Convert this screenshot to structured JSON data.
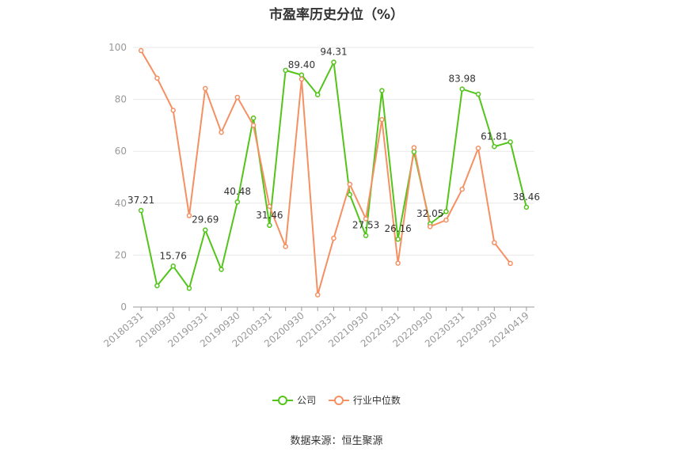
{
  "title": "市盈率历史分位（%）",
  "source": "数据来源：恒生聚源",
  "colors": {
    "company": "#52c41a",
    "industry": "#f59063",
    "grid": "#e8e8e8",
    "axis": "#999999"
  },
  "chart_data": {
    "type": "line",
    "title": "市盈率历史分位（%）",
    "ylim": [
      0,
      100
    ],
    "yticks": [
      0,
      20,
      40,
      60,
      80,
      100
    ],
    "grid": true,
    "legend_position": "bottom",
    "x": [
      "20180331",
      "20180630",
      "20180930",
      "20181231",
      "20190331",
      "20190630",
      "20190930",
      "20191231",
      "20200331",
      "20200630",
      "20200930",
      "20201231",
      "20210331",
      "20210630",
      "20210930",
      "20211231",
      "20220331",
      "20220630",
      "20220930",
      "20221231",
      "20230331",
      "20230630",
      "20230930",
      "20231231",
      "20240419"
    ],
    "xtick_labels": [
      "20180331",
      "20180930",
      "20190331",
      "20190930",
      "20200331",
      "20200930",
      "20210331",
      "20210930",
      "20220331",
      "20220930",
      "20230331",
      "20230930",
      "20240419"
    ],
    "series": [
      {
        "name": "公司",
        "values": [
          37.21,
          8.2,
          15.76,
          7.2,
          29.69,
          14.5,
          40.48,
          72.8,
          31.46,
          91.2,
          89.4,
          81.8,
          94.31,
          43.3,
          27.53,
          83.4,
          26.16,
          59.8,
          32.05,
          36.8,
          83.98,
          82.0,
          61.81,
          63.6,
          38.46
        ],
        "labels": [
          "37.21",
          "",
          "15.76",
          "",
          "29.69",
          "",
          "40.48",
          "",
          "31.46",
          "",
          "89.40",
          "",
          "94.31",
          "",
          "27.53",
          "",
          "26.16",
          "",
          "32.05",
          "",
          "83.98",
          "",
          "61.81",
          "",
          "38.46"
        ]
      },
      {
        "name": "行业中位数",
        "values": [
          98.8,
          88.2,
          75.8,
          35.2,
          84.2,
          67.3,
          80.8,
          70.0,
          38.8,
          23.3,
          87.8,
          4.7,
          26.5,
          47.3,
          34.0,
          72.2,
          16.9,
          61.4,
          31.0,
          33.5,
          45.4,
          61.2,
          24.8,
          16.8,
          null
        ]
      }
    ]
  }
}
